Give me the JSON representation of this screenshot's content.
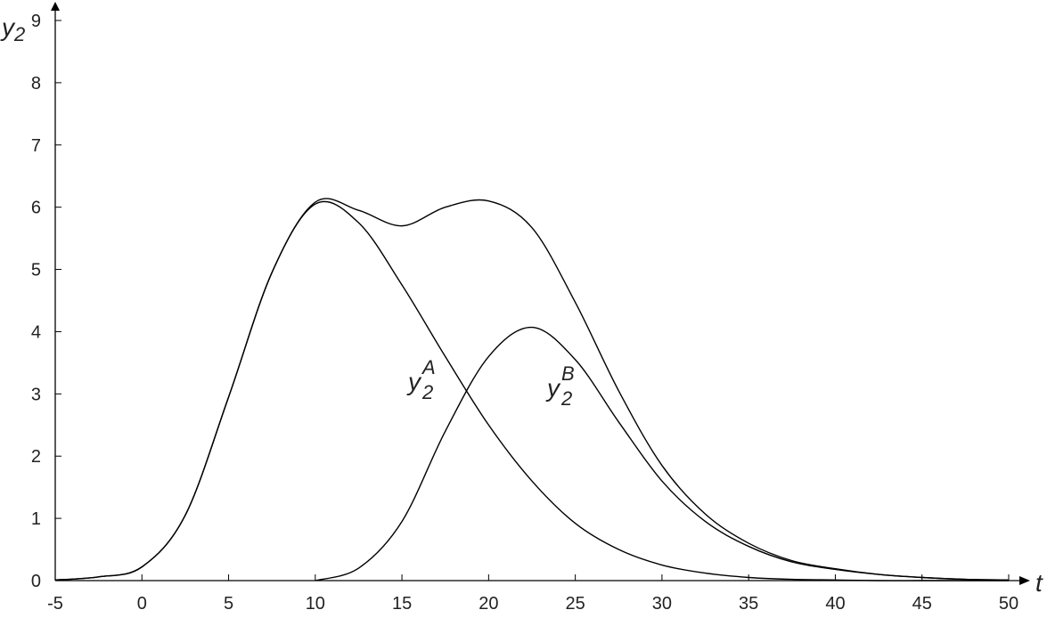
{
  "chart_data": {
    "type": "line",
    "x": [
      -5,
      -2.5,
      0,
      2.5,
      5,
      7.5,
      10,
      12.5,
      15,
      17.5,
      20,
      22.5,
      25,
      27.5,
      30,
      32.5,
      35,
      37.5,
      40,
      42.5,
      45,
      47.5,
      50
    ],
    "series": [
      {
        "color": "#000000",
        "values": [
          0.01,
          0.06,
          0.22,
          1.05,
          2.95,
          4.95,
          6.05,
          5.75,
          4.75,
          3.6,
          2.5,
          1.6,
          0.92,
          0.5,
          0.25,
          0.12,
          0.05,
          0.02,
          0.01,
          0,
          0,
          0,
          0
        ]
      },
      {
        "color": "#000000",
        "values": [
          null,
          null,
          null,
          null,
          null,
          null,
          0,
          0.2,
          0.95,
          2.4,
          3.6,
          4.07,
          3.55,
          2.55,
          1.6,
          0.95,
          0.55,
          0.3,
          0.18,
          0.1,
          0.05,
          0.02,
          0.01
        ]
      },
      {
        "color": "#000000",
        "values": [
          0.01,
          0.06,
          0.22,
          1.05,
          2.95,
          4.95,
          6.08,
          5.95,
          5.7,
          6.0,
          6.1,
          5.67,
          4.47,
          3.05,
          1.85,
          1.07,
          0.6,
          0.32,
          0.19,
          0.1,
          0.05,
          0.02,
          0.01
        ]
      }
    ],
    "annotations": [
      {
        "text": "y",
        "sub": "2",
        "sup": "A"
      },
      {
        "text": "y",
        "sub": "2",
        "sup": "B"
      }
    ],
    "xlabel": "t",
    "ylabel": {
      "text": "y",
      "sub": "2"
    },
    "xlim": [
      -5,
      50
    ],
    "ylim": [
      0,
      9
    ],
    "xticks": [
      -5,
      0,
      5,
      10,
      15,
      20,
      25,
      30,
      35,
      40,
      45,
      50
    ],
    "yticks": [
      0,
      1,
      2,
      3,
      4,
      5,
      6,
      7,
      8,
      9
    ]
  }
}
